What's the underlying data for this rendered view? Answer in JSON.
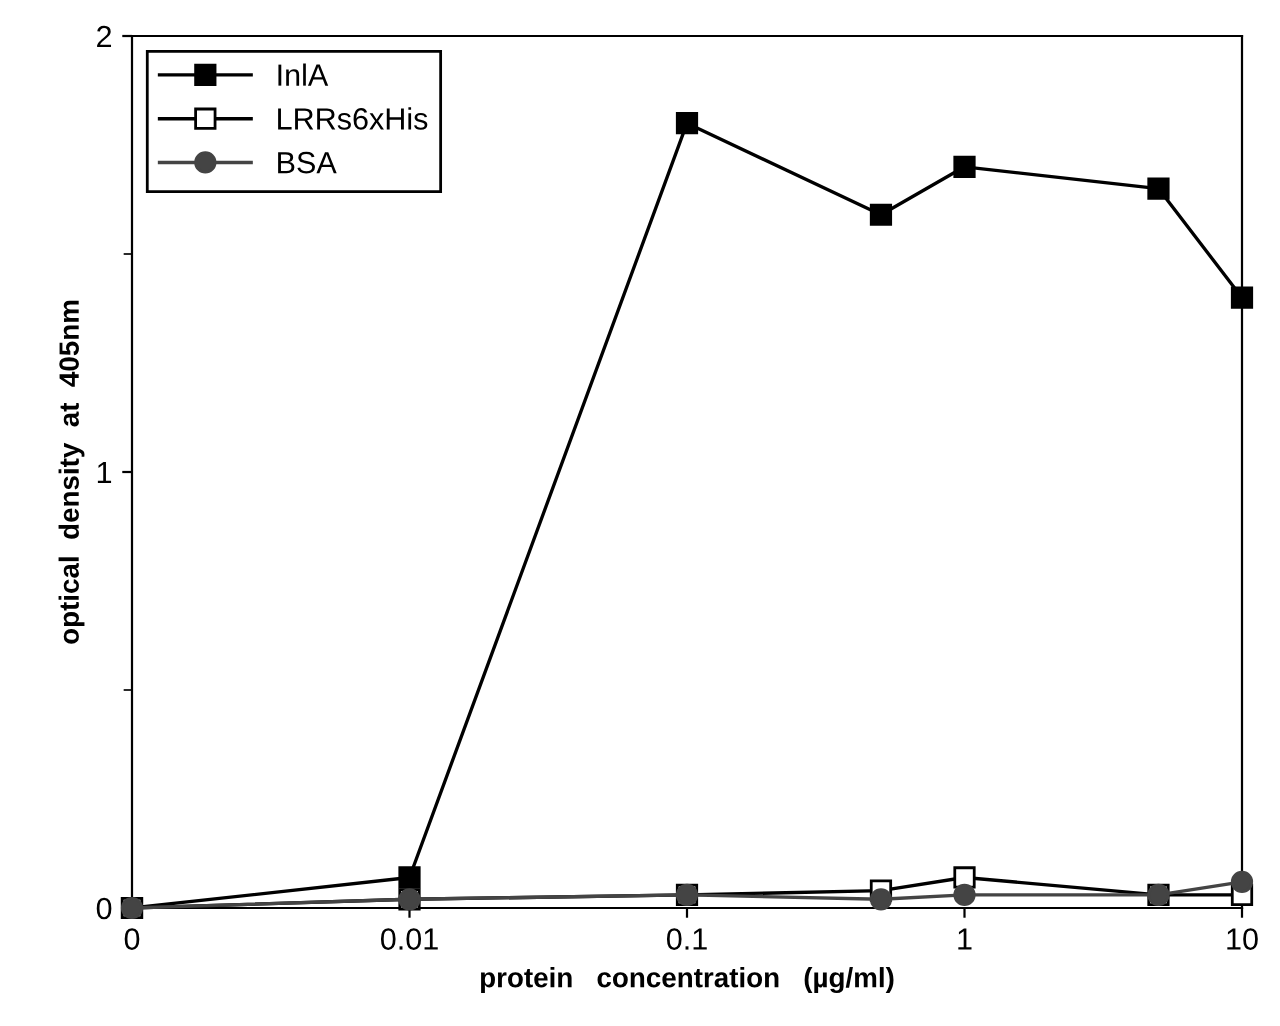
{
  "chart_data": {
    "type": "line",
    "xlabel": "protein   concentration   (µg/ml)",
    "ylabel": "optical  density  at  405nm",
    "log": "x",
    "x": [
      0.001,
      0.01,
      0.1,
      0.5,
      1,
      5,
      10
    ],
    "xlim": [
      0.001,
      10
    ],
    "xticks": [
      {
        "value": 0.001,
        "label": "0"
      },
      0.01,
      0.1,
      1,
      10
    ],
    "ylim": [
      0,
      2
    ],
    "yticks": [
      0,
      {
        "value": 0.5,
        "label": null
      },
      1,
      {
        "value": 1.5,
        "label": null
      },
      2
    ],
    "grid": false,
    "legend": "top left",
    "line_style": "solid",
    "series": [
      {
        "name": "InlA",
        "color": "#000000",
        "marker": "square",
        "values": [
          0,
          0.07,
          1.8,
          1.59,
          1.7,
          1.65,
          1.4
        ]
      },
      {
        "name": "LRRs6xHis",
        "color": "#000000",
        "marker": "square",
        "values": [
          0,
          0.02,
          0.03,
          0.04,
          0.07,
          0.03,
          0.03
        ]
      },
      {
        "name": "BSA",
        "color": "#444444",
        "marker": "circle",
        "values": [
          0,
          0.02,
          0.03,
          0.02,
          0.03,
          0.03,
          0.06
        ]
      }
    ]
  }
}
